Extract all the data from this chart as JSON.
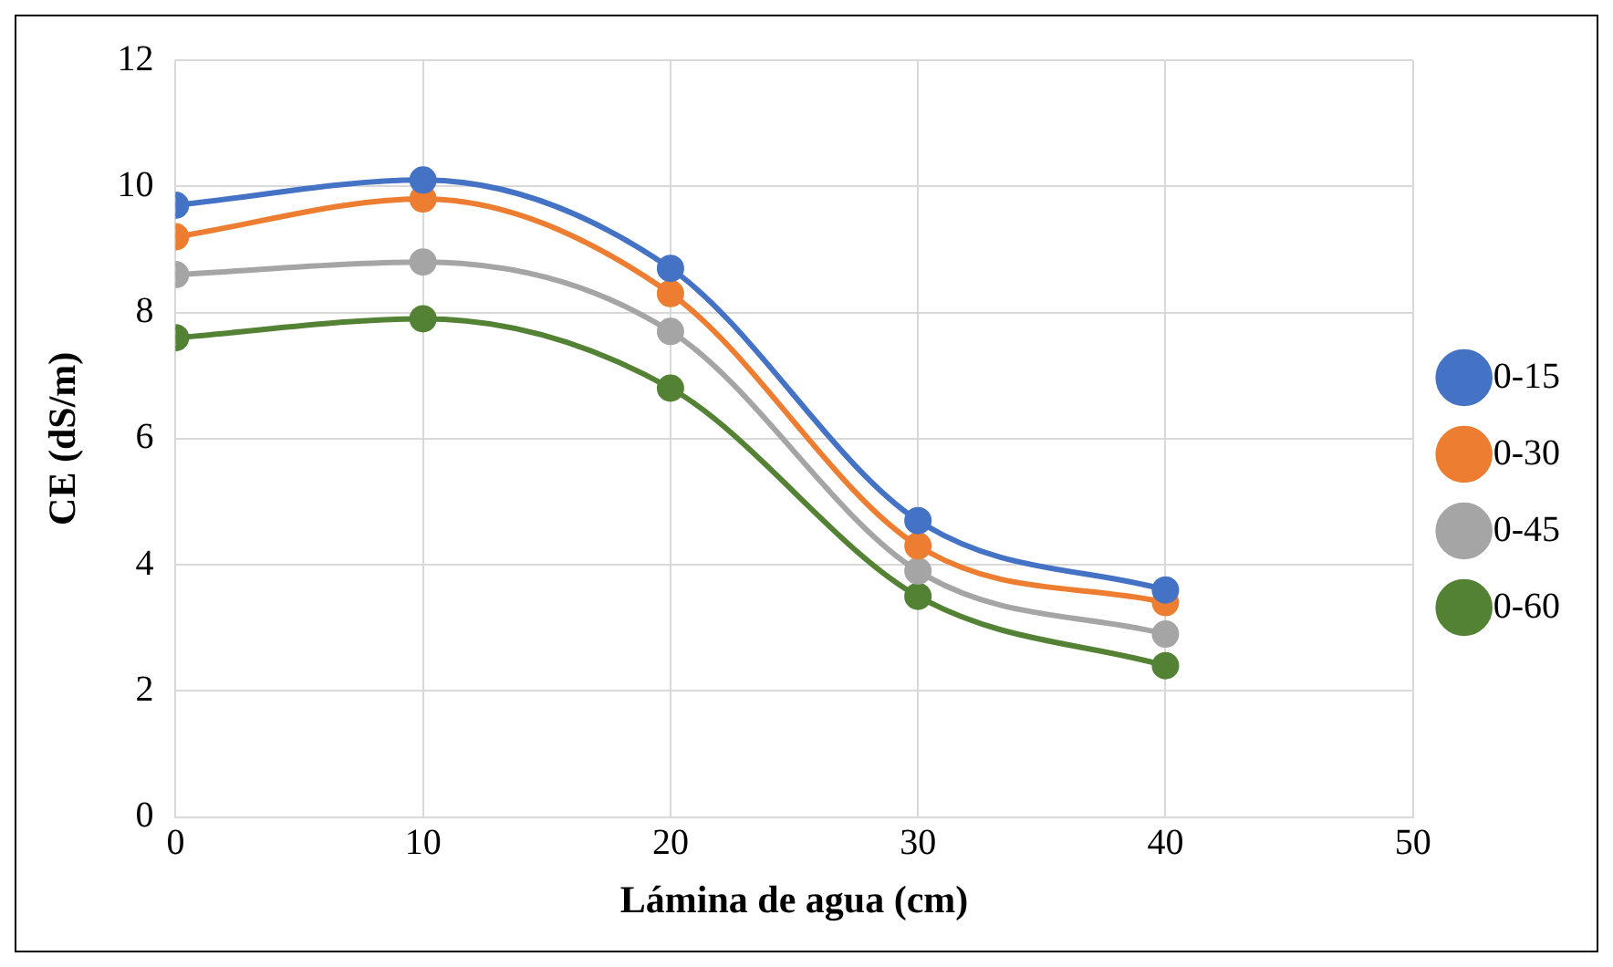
{
  "chart_data": {
    "type": "line",
    "xlabel": "Lámina de agua (cm)",
    "ylabel": "CE (dS/m)",
    "x": [
      0,
      10,
      20,
      30,
      40
    ],
    "series": [
      {
        "name": "0-15",
        "color": "#4472c4",
        "values": [
          9.7,
          10.1,
          8.7,
          4.7,
          3.6
        ]
      },
      {
        "name": "0-30",
        "color": "#ed7d31",
        "values": [
          9.2,
          9.8,
          8.3,
          4.3,
          3.4
        ]
      },
      {
        "name": "0-45",
        "color": "#a5a5a5",
        "values": [
          8.6,
          8.8,
          7.7,
          3.9,
          2.9
        ]
      },
      {
        "name": "0-60",
        "color": "#548235",
        "values": [
          7.6,
          7.9,
          6.8,
          3.5,
          2.4
        ]
      }
    ],
    "xlim": [
      0,
      50
    ],
    "xticks": [
      0,
      10,
      20,
      30,
      40,
      50
    ],
    "ylim": [
      0,
      12
    ],
    "yticks": [
      0,
      2,
      4,
      6,
      8,
      10,
      12
    ],
    "grid": true,
    "legend": "right",
    "marker": "circle",
    "line_style": "solid"
  }
}
